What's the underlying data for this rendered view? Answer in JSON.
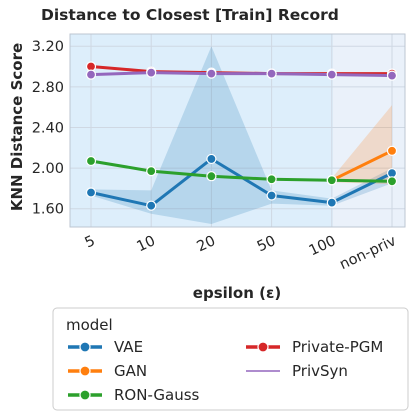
{
  "chart_data": {
    "type": "line",
    "title": "Distance to Closest [Train] Record",
    "xlabel": "epsilon (ε)",
    "ylabel": "KNN Distance Score",
    "categories": [
      "5",
      "10",
      "20",
      "50",
      "100",
      "non-priv"
    ],
    "ylim": [
      1.42,
      3.32
    ],
    "yticks": [
      1.6,
      2.0,
      2.4,
      2.8,
      3.2
    ],
    "ytick_labels": [
      "1.60",
      "2.00",
      "2.40",
      "2.80",
      "3.20"
    ],
    "grid": true,
    "shaded_region": {
      "from_category": "5",
      "to_category": "100",
      "color": "#ddeefb"
    },
    "legend": {
      "title": "model",
      "placement": "bottom"
    },
    "series": [
      {
        "name": "VAE",
        "color": "#1f77b4",
        "marker": true,
        "values": [
          1.76,
          1.63,
          2.09,
          1.73,
          1.66,
          1.95
        ],
        "ci_low": [
          1.73,
          1.55,
          1.45,
          1.65,
          1.63,
          1.85
        ],
        "ci_high": [
          1.79,
          1.78,
          3.2,
          1.78,
          1.7,
          2.0
        ]
      },
      {
        "name": "GAN",
        "color": "#ff7f0e",
        "marker": true,
        "values": [
          null,
          null,
          null,
          null,
          1.88,
          2.17
        ],
        "ci_low": [
          null,
          null,
          null,
          null,
          1.86,
          1.84
        ],
        "ci_high": [
          null,
          null,
          null,
          null,
          1.9,
          2.62
        ]
      },
      {
        "name": "RON-Gauss",
        "color": "#2ca02c",
        "marker": true,
        "values": [
          2.07,
          1.97,
          1.92,
          1.89,
          1.88,
          1.87
        ]
      },
      {
        "name": "Private-PGM",
        "color": "#d62728",
        "marker": true,
        "values": [
          3.0,
          2.95,
          2.94,
          2.93,
          2.93,
          2.93
        ]
      },
      {
        "name": "PrivSyn",
        "color": "#9467bd",
        "marker": true,
        "values": [
          2.92,
          2.94,
          2.93,
          2.93,
          2.92,
          2.91
        ]
      }
    ]
  }
}
